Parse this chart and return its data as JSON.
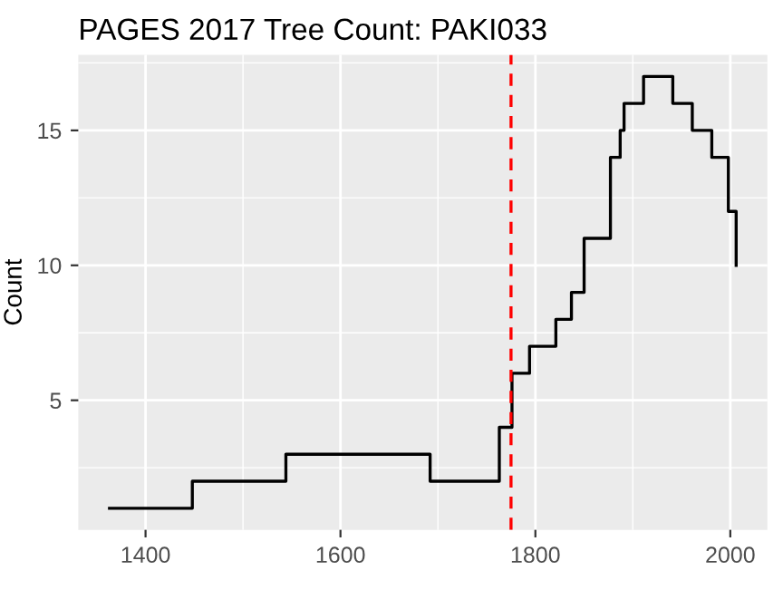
{
  "chart_data": {
    "type": "step",
    "title": "PAGES 2017 Tree Count: PAKI033",
    "ylabel": "Count",
    "x": [
      1363,
      1448,
      1544,
      1692,
      1763,
      1776,
      1794,
      1821,
      1837,
      1850,
      1877,
      1887,
      1891,
      1911,
      1941,
      1961,
      1981,
      1998,
      2006
    ],
    "series": [
      {
        "color": "#000000",
        "values": [
          1,
          2,
          3,
          2,
          4,
          6,
          7,
          8,
          9,
          11,
          14,
          15,
          16,
          17,
          16,
          15,
          14,
          12,
          10
        ]
      }
    ],
    "xlim": [
      1331,
      2038
    ],
    "xticks": [
      1400,
      1600,
      1800,
      2000
    ],
    "ylim": [
      0.2,
      17.8
    ],
    "yticks": [
      5,
      10,
      15
    ],
    "ref_lines": [
      {
        "axis": "x",
        "value": 1775,
        "color": "#ff0000",
        "line_style": "dashed"
      }
    ],
    "grid": true
  }
}
